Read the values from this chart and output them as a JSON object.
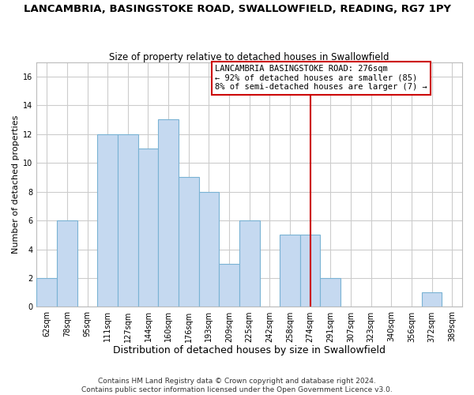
{
  "title": "LANCAMBRIA, BASINGSTOKE ROAD, SWALLOWFIELD, READING, RG7 1PY",
  "subtitle": "Size of property relative to detached houses in Swallowfield",
  "xlabel": "Distribution of detached houses by size in Swallowfield",
  "ylabel": "Number of detached properties",
  "bin_labels": [
    "62sqm",
    "78sqm",
    "95sqm",
    "111sqm",
    "127sqm",
    "144sqm",
    "160sqm",
    "176sqm",
    "193sqm",
    "209sqm",
    "225sqm",
    "242sqm",
    "258sqm",
    "274sqm",
    "291sqm",
    "307sqm",
    "323sqm",
    "340sqm",
    "356sqm",
    "372sqm",
    "389sqm"
  ],
  "bar_heights": [
    2,
    6,
    0,
    12,
    12,
    11,
    13,
    9,
    8,
    3,
    6,
    0,
    5,
    5,
    2,
    0,
    0,
    0,
    0,
    1,
    0
  ],
  "bar_color": "#c5d9f0",
  "bar_edgecolor": "#7ab3d4",
  "ylim": [
    0,
    17
  ],
  "yticks": [
    0,
    2,
    4,
    6,
    8,
    10,
    12,
    14,
    16
  ],
  "vline_color": "#cc0000",
  "annotation_text": "LANCAMBRIA BASINGSTOKE ROAD: 276sqm\n← 92% of detached houses are smaller (85)\n8% of semi-detached houses are larger (7) →",
  "annotation_box_color": "#ffffff",
  "annotation_box_edgecolor": "#cc0000",
  "footer_text": "Contains HM Land Registry data © Crown copyright and database right 2024.\nContains public sector information licensed under the Open Government Licence v3.0.",
  "bg_color": "#ffffff",
  "grid_color": "#cccccc",
  "title_fontsize": 9.5,
  "subtitle_fontsize": 8.5,
  "xlabel_fontsize": 9,
  "ylabel_fontsize": 8,
  "tick_fontsize": 7,
  "annot_fontsize": 7.5,
  "footer_fontsize": 6.5
}
